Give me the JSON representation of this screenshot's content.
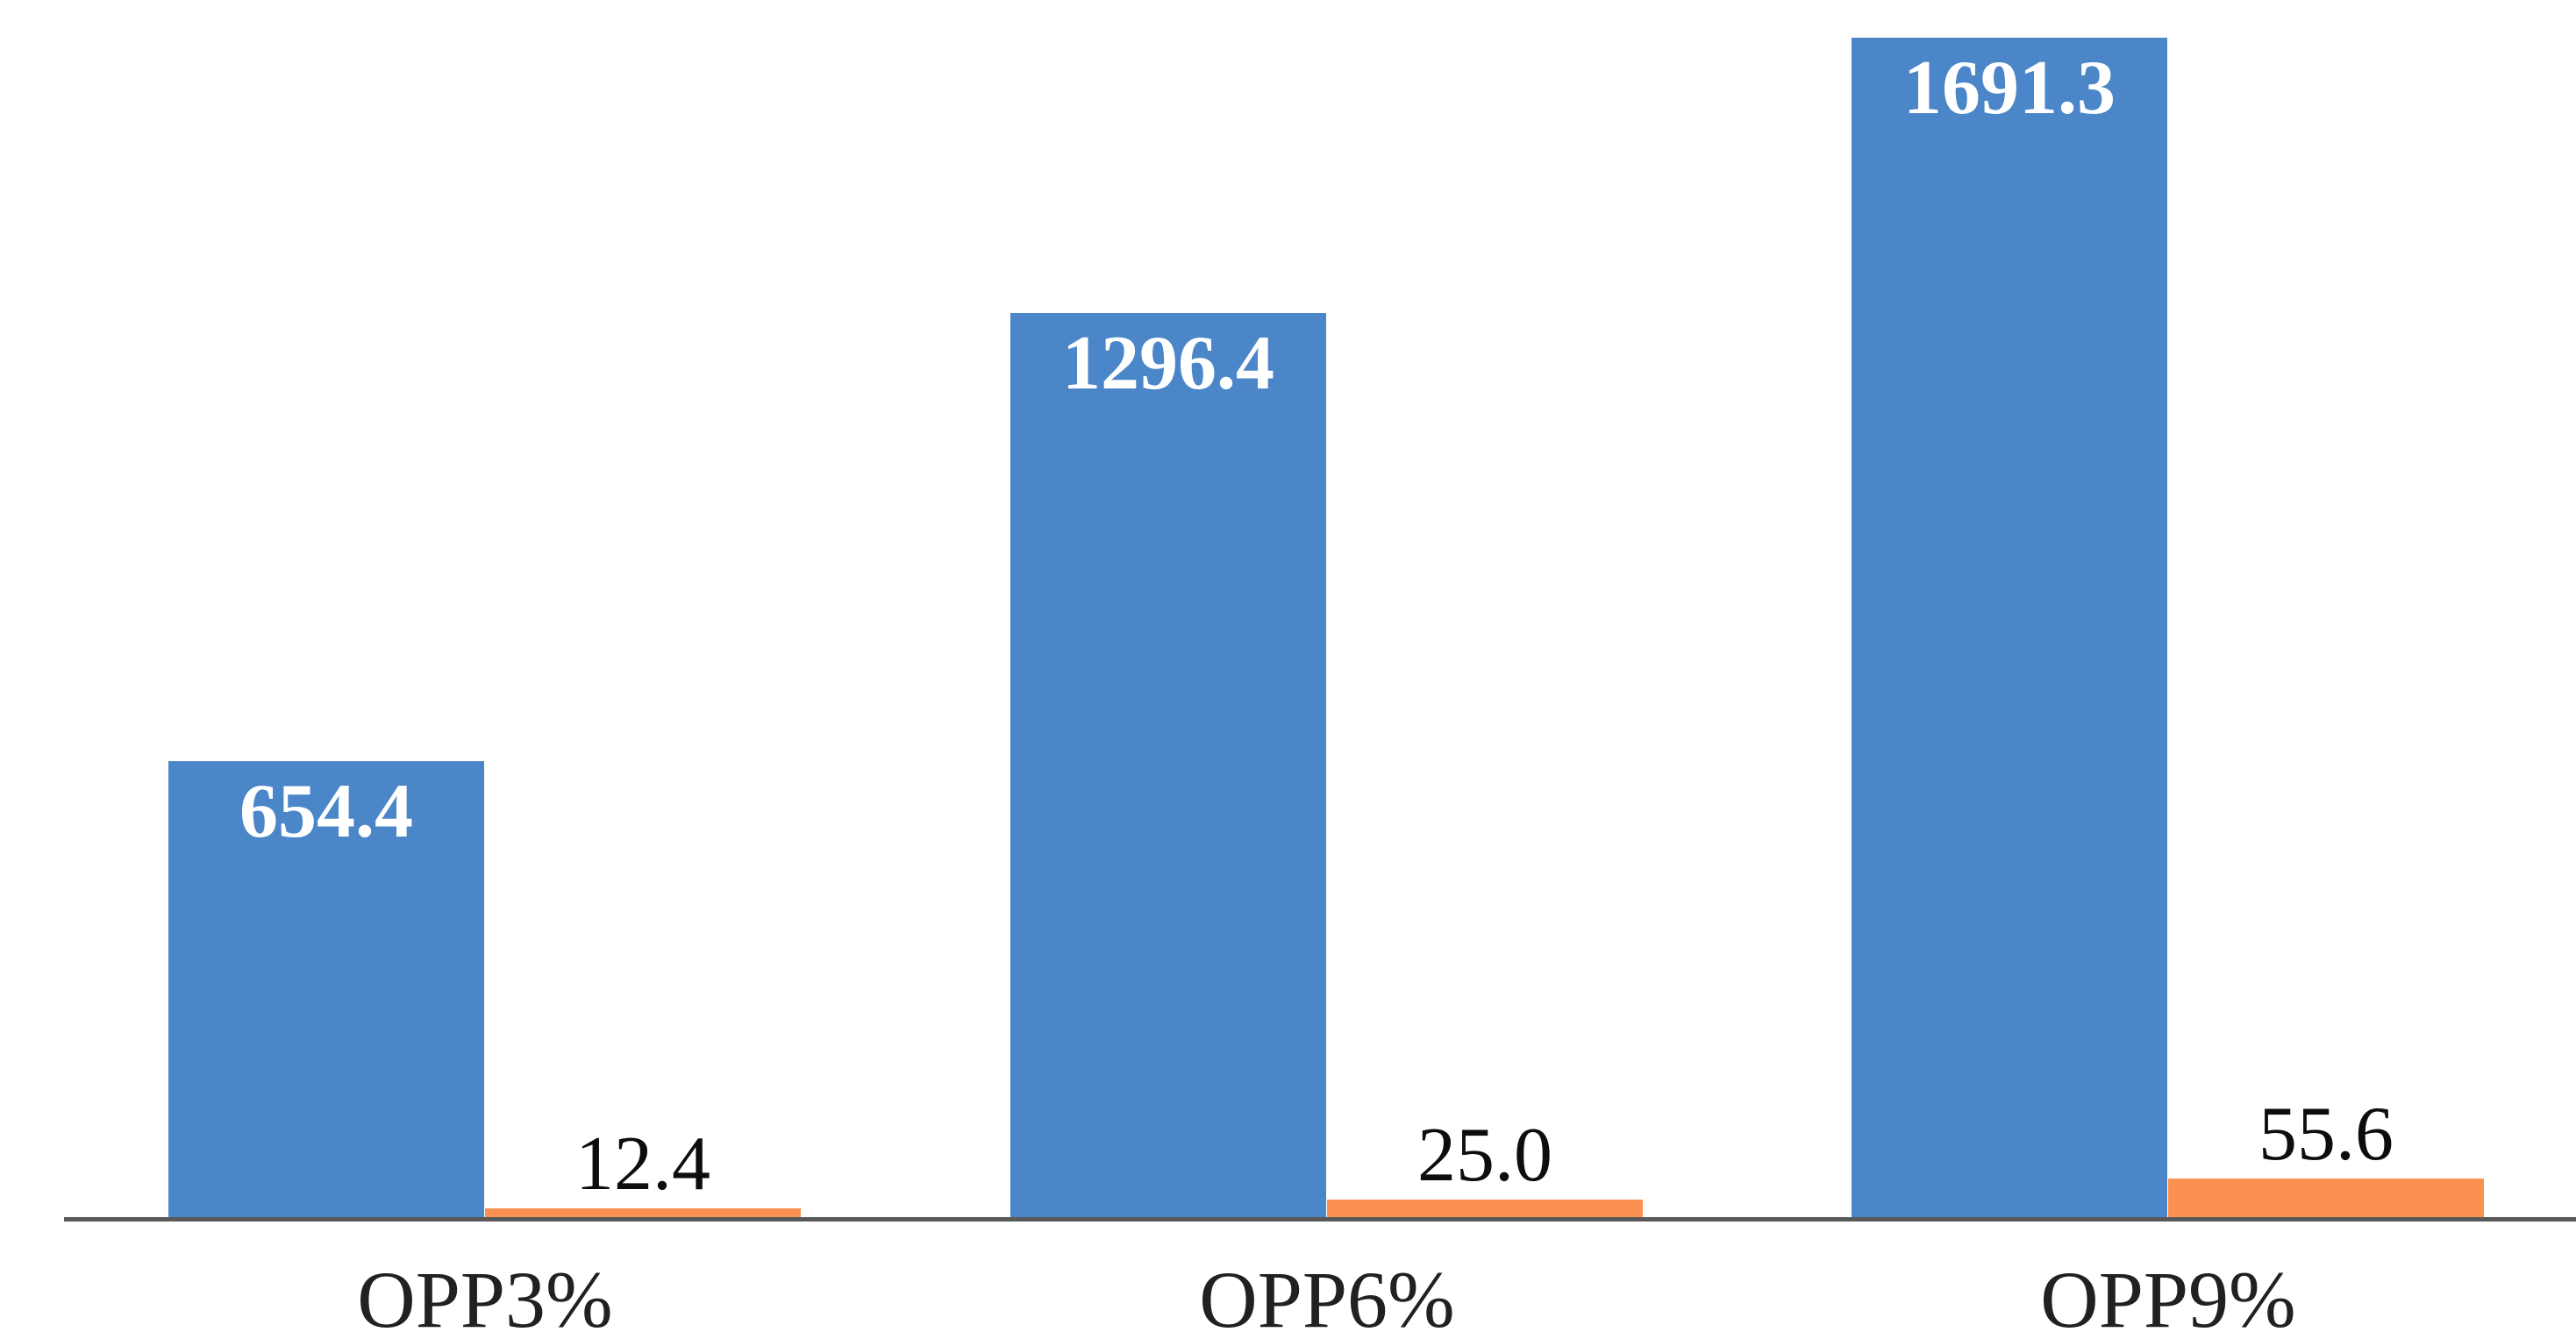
{
  "chart_data": {
    "type": "bar",
    "title": "",
    "xlabel": "",
    "ylabel": "",
    "categories": [
      "OPP3%",
      "OPP6%",
      "OPP9%"
    ],
    "series": [
      {
        "name": "blue-series",
        "color": "#4A86C8",
        "values": [
          654.4,
          1296.4,
          1691.3
        ],
        "labels": [
          "654.4",
          "1296.4",
          "1691.3"
        ],
        "label_color": "#FFFFFF",
        "label_style": "bold",
        "label_position": "inside-top"
      },
      {
        "name": "orange-series",
        "color": "#FA9150",
        "values": [
          12.4,
          25.0,
          55.6
        ],
        "labels": [
          "12.4",
          "25.0",
          "55.6"
        ],
        "label_color": "#0D0D0D",
        "label_style": "regular",
        "label_position": "above"
      }
    ],
    "ylim": [
      0,
      1725
    ],
    "grid": false,
    "legend": false,
    "y_axis_visible": false,
    "axis_line_color": "#595959",
    "category_label_color": "#212121",
    "background": "#FFFFFF"
  }
}
